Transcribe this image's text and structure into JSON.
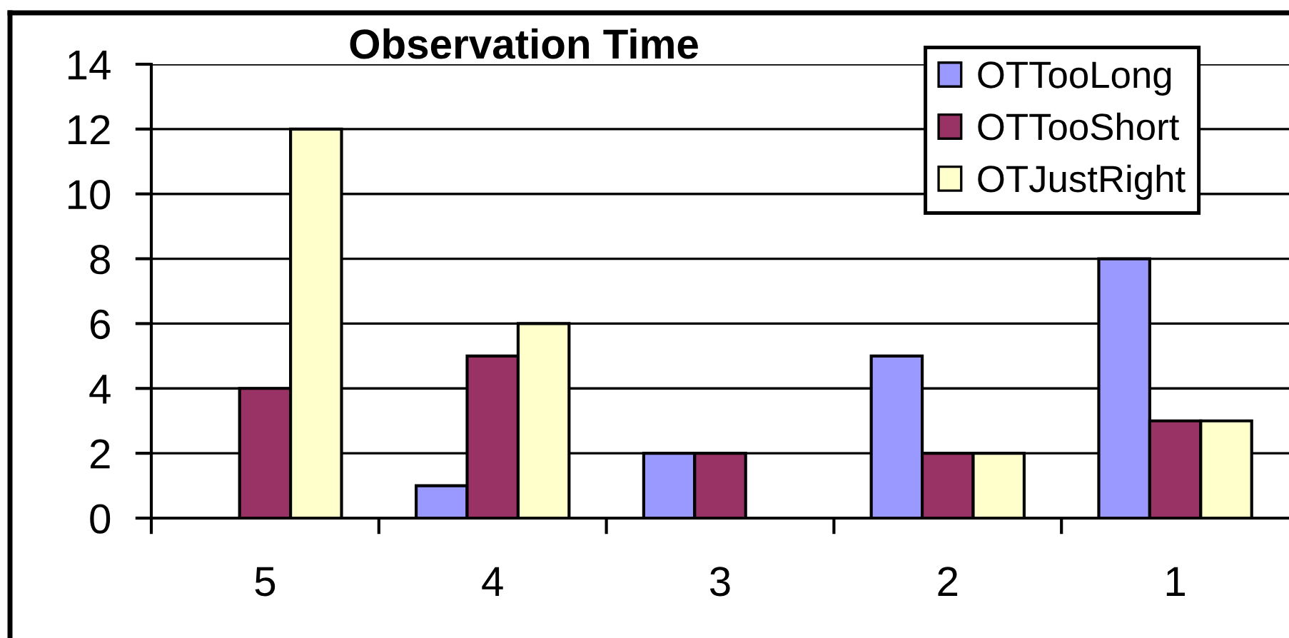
{
  "chart_data": {
    "type": "bar",
    "title": "Observation Time",
    "categories": [
      "5",
      "4",
      "3",
      "2",
      "1"
    ],
    "series": [
      {
        "name": "OTTooLong",
        "color": "#9999ff",
        "values": [
          0,
          1,
          2,
          5,
          8
        ]
      },
      {
        "name": "OTTooShort",
        "color": "#993366",
        "values": [
          4,
          5,
          2,
          2,
          3
        ]
      },
      {
        "name": "OTJustRight",
        "color": "#ffffcc",
        "values": [
          12,
          6,
          0,
          2,
          3
        ]
      }
    ],
    "ylim": [
      0,
      14
    ],
    "yticks": [
      0,
      2,
      4,
      6,
      8,
      10,
      12,
      14
    ],
    "grid": "y",
    "legend": "top right"
  }
}
